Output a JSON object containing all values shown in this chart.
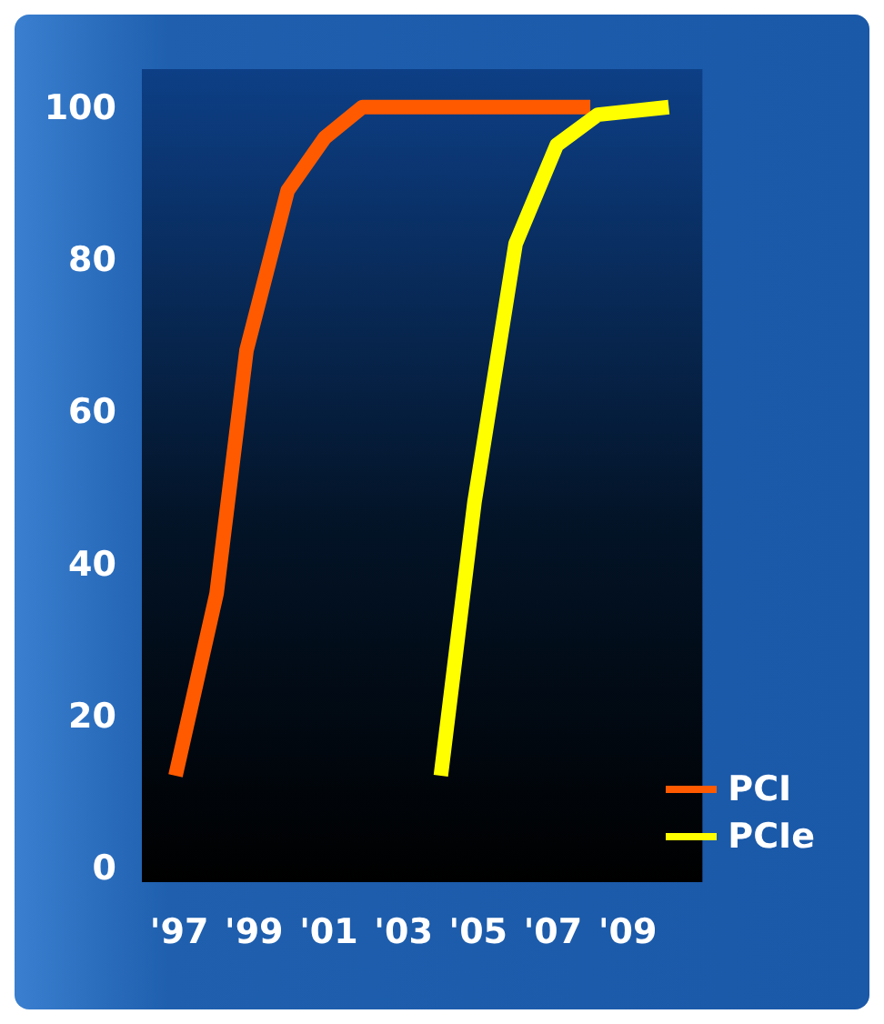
{
  "chart_data": {
    "type": "line",
    "x": [
      1996.9,
      1998,
      1998.8,
      1999.9,
      2000.9,
      2001.9,
      2008
    ],
    "series": [
      {
        "name": "PCI",
        "color": "#ff5a00",
        "values": [
          12,
          36,
          68,
          89,
          96,
          100,
          100
        ]
      },
      {
        "name": "PCIe",
        "color": "#ffff00",
        "x": [
          2004,
          2004.9,
          2006,
          2007.1,
          2008.2,
          2010.1
        ],
        "values": [
          12,
          48,
          82,
          95,
          99,
          100
        ]
      }
    ],
    "xlim": [
      1996,
      2011
    ],
    "xticks": [
      {
        "value": 1997,
        "label": "'97"
      },
      {
        "value": 1999,
        "label": "'99"
      },
      {
        "value": 2001,
        "label": "'01"
      },
      {
        "value": 2003,
        "label": "'03"
      },
      {
        "value": 2005,
        "label": "'05"
      },
      {
        "value": 2007,
        "label": "'07"
      },
      {
        "value": 2009,
        "label": "'09"
      }
    ],
    "ylim": [
      -2,
      105
    ],
    "yticks": [
      0,
      20,
      40,
      60,
      80,
      100
    ],
    "grid": false,
    "legend": "bottom right",
    "marker": "none",
    "line_style": "solid"
  }
}
